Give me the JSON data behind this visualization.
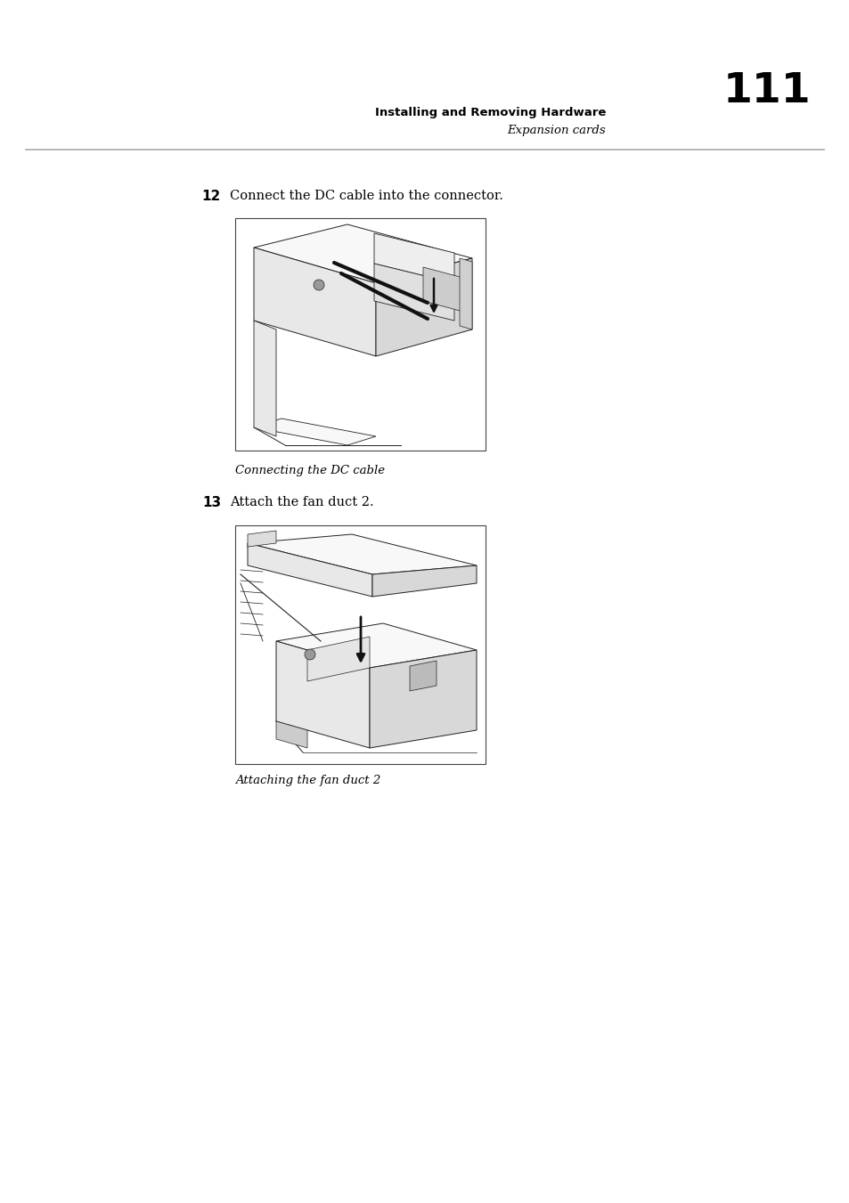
{
  "page_width": 9.54,
  "page_height": 13.51,
  "dpi": 100,
  "background_color": "#ffffff",
  "text_color": "#000000",
  "header_bold_text": "Installing and Removing Hardware",
  "header_italic_text": "Expansion cards",
  "page_number": "111",
  "step12_label": "12",
  "step12_text": "Connect the DC cable into the connector.",
  "step13_label": "13",
  "step13_text": "Attach the fan duct 2.",
  "caption1": "Connecting the DC cable",
  "caption2": "Attaching the fan duct 2",
  "header_bold_size": 9.5,
  "header_italic_size": 9.5,
  "page_num_size": 34,
  "step_label_size": 11,
  "step_text_size": 10.5,
  "caption_size": 9.5,
  "line_color": "#aaaaaa",
  "box_edge_color": "#444444",
  "draw_color": "#222222",
  "shade_light": "#f8f8f8",
  "shade_mid": "#e8e8e8",
  "shade_dark": "#d8d8d8"
}
